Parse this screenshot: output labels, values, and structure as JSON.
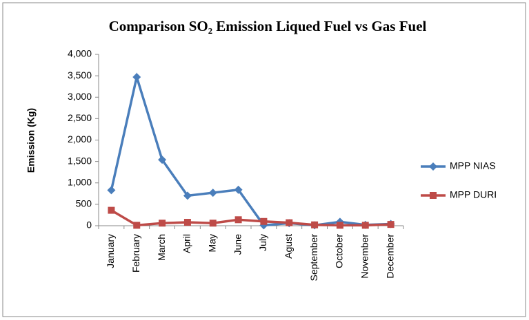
{
  "chart_data": {
    "type": "line",
    "title": "Comparison SO₂ Emission Liqued Fuel vs Gas Fuel",
    "y_label": "Emission (Kg)",
    "categories": [
      "January",
      "February",
      "March",
      "April",
      "May",
      "June",
      "July",
      "Agust",
      "September",
      "October",
      "November",
      "December"
    ],
    "series": [
      {
        "name": "MPP NIAS",
        "color": "#4a7ebb",
        "marker": "diamond",
        "values": [
          830,
          3470,
          1540,
          700,
          770,
          840,
          10,
          60,
          10,
          90,
          20,
          40
        ]
      },
      {
        "name": "MPP DURI",
        "color": "#be4b48",
        "marker": "square",
        "values": [
          360,
          10,
          60,
          80,
          60,
          140,
          100,
          70,
          20,
          10,
          10,
          30
        ]
      }
    ],
    "ylim": [
      0,
      4000
    ],
    "yticks": [
      0,
      500,
      {
        "value": 1000,
        "label": "1,000"
      },
      {
        "value": 1500,
        "label": "1,500"
      },
      {
        "value": 2000,
        "label": "2,000"
      },
      {
        "value": 2500,
        "label": "2,500"
      },
      {
        "value": 3000,
        "label": "3,000"
      },
      {
        "value": 3500,
        "label": "3,500"
      },
      {
        "value": 4000,
        "label": "4,000"
      }
    ],
    "grid": false,
    "legend": "right"
  }
}
